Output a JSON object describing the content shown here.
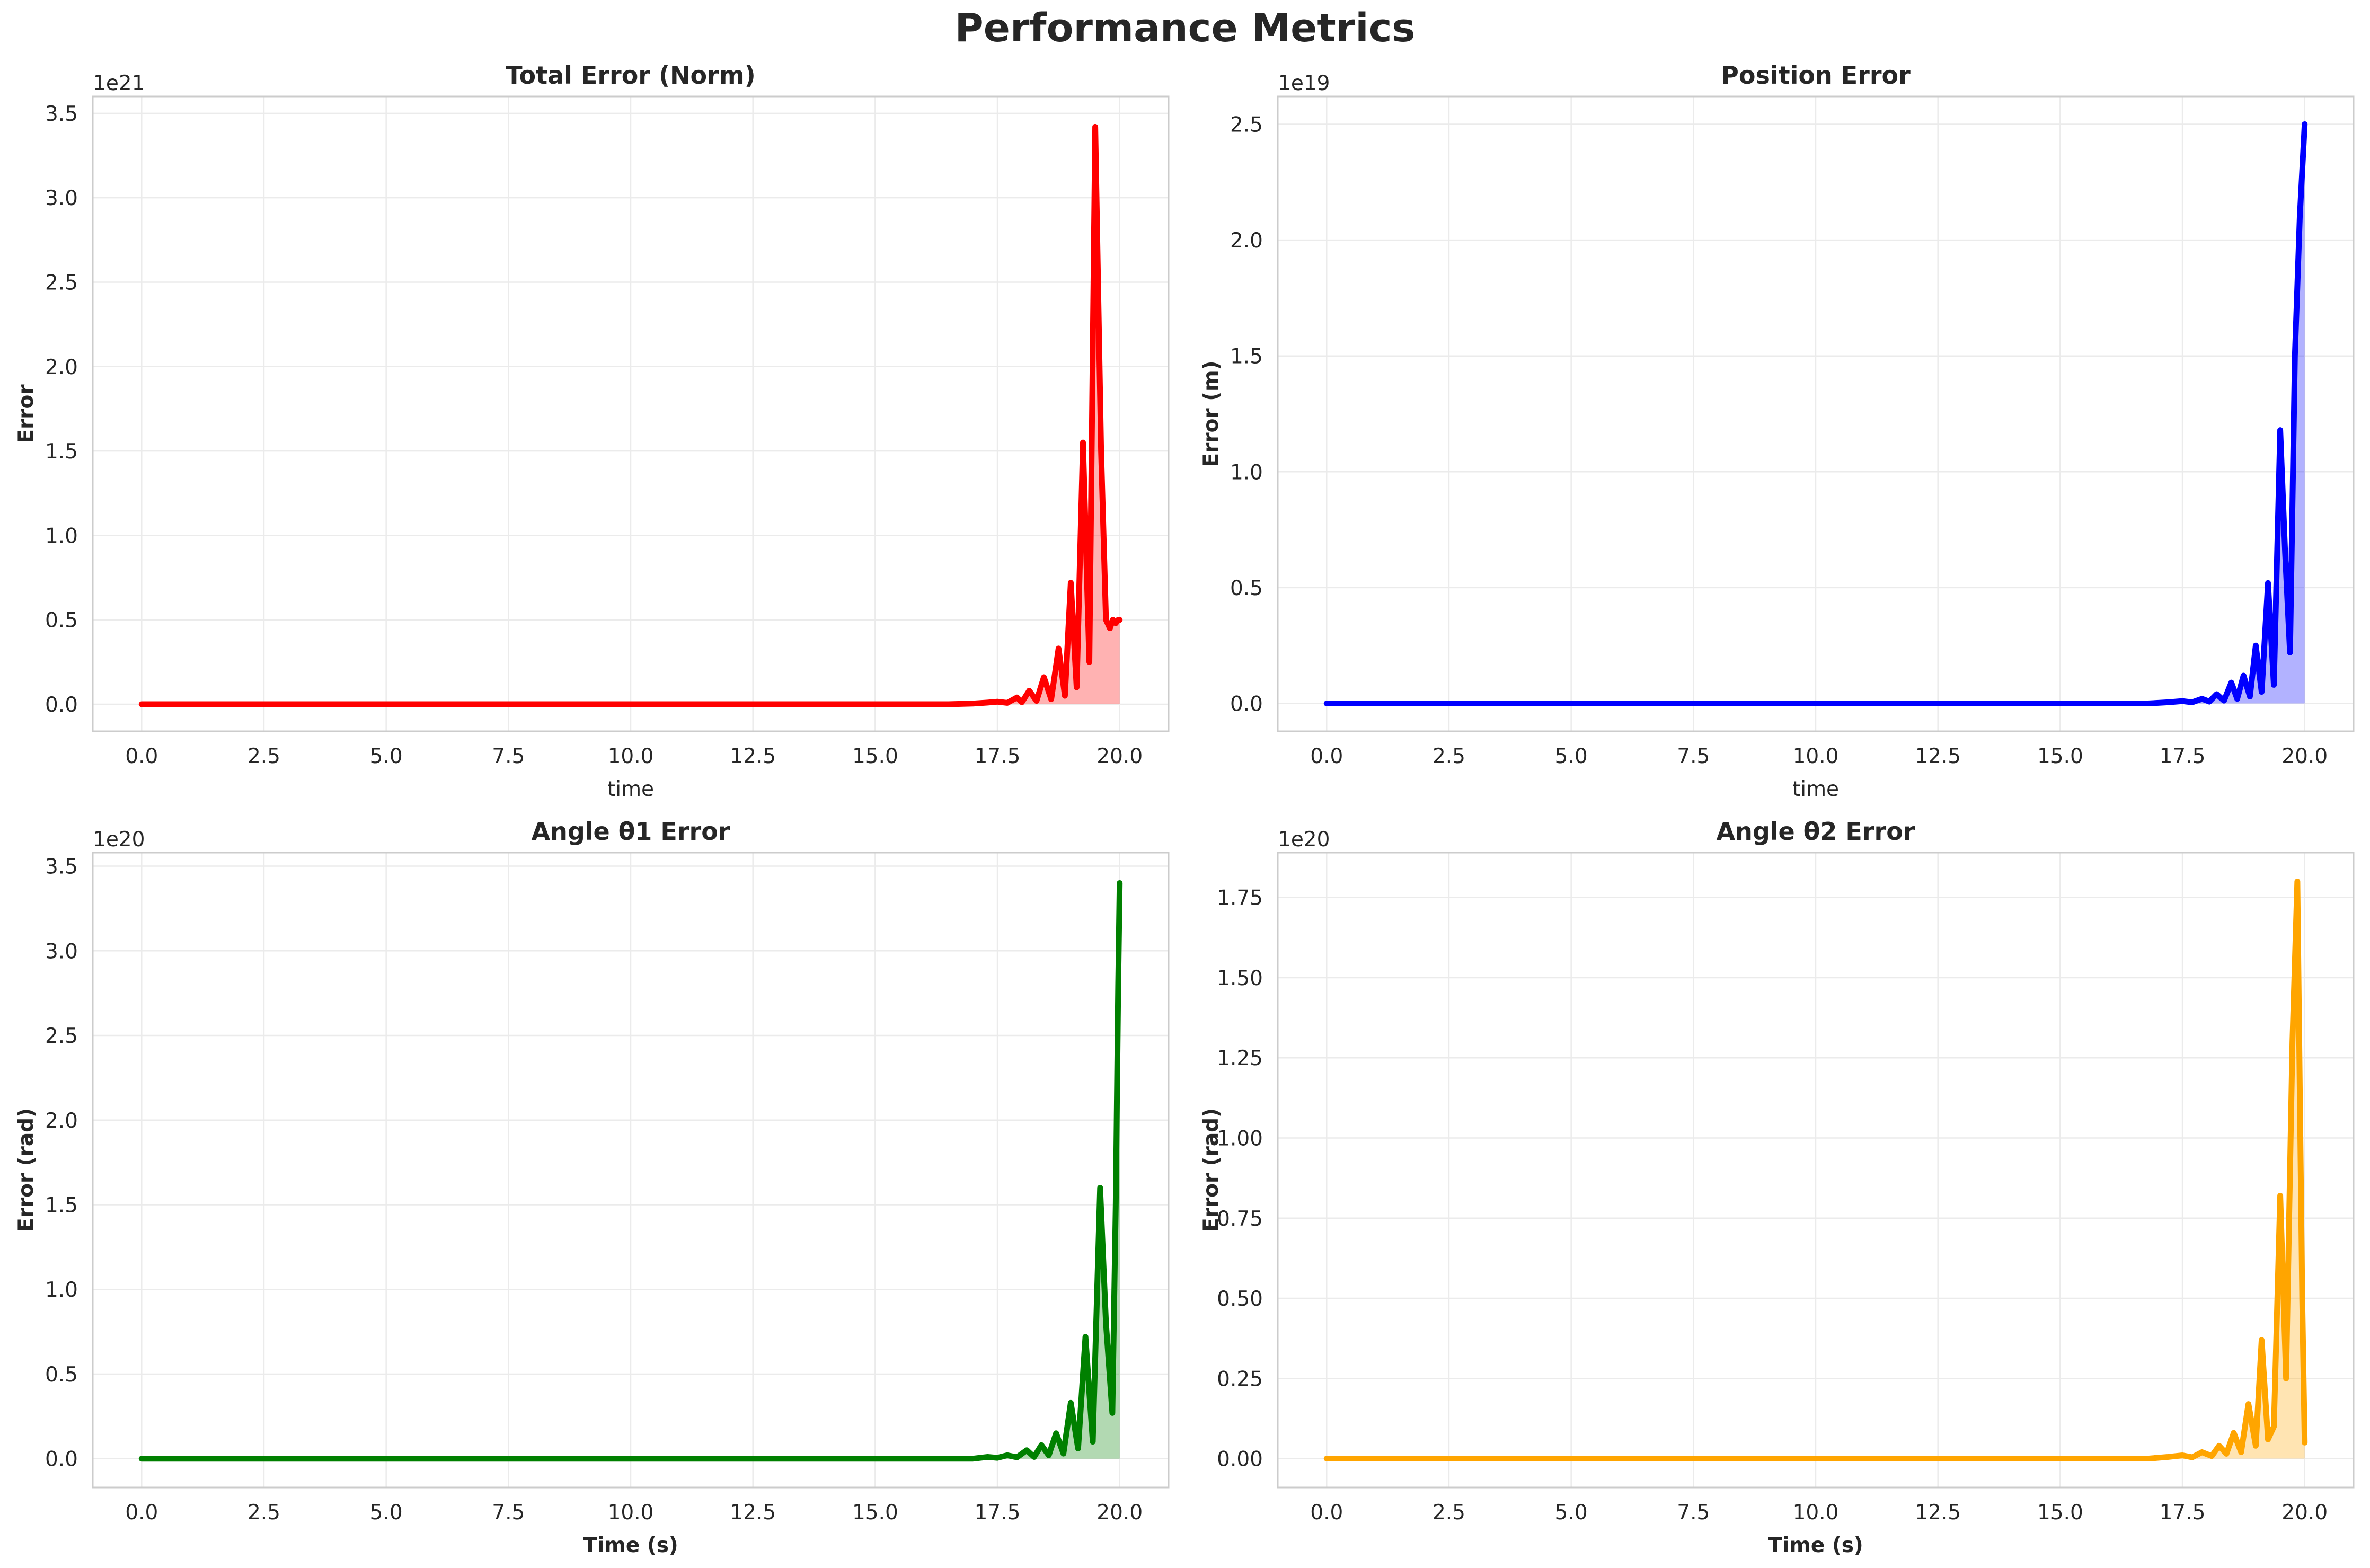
{
  "figure": {
    "title": "Performance Metrics"
  },
  "chart_data": [
    {
      "type": "area",
      "title": "Total Error (Norm)",
      "xlabel": "time",
      "xlabel_bold": false,
      "ylabel": "Error",
      "offset_label": "1e21",
      "xlim": [
        -1.0,
        21.0
      ],
      "ylim": [
        -0.16,
        3.6
      ],
      "xticks": [
        "0.0",
        "2.5",
        "5.0",
        "7.5",
        "10.0",
        "12.5",
        "15.0",
        "17.5",
        "20.0"
      ],
      "yticks": [
        "0.0",
        "0.5",
        "1.0",
        "1.5",
        "2.0",
        "2.5",
        "3.0",
        "3.5"
      ],
      "grid": true,
      "color": "#ff0000",
      "series": [
        {
          "x": [
            0,
            16.5,
            17.0,
            17.3,
            17.5,
            17.7,
            17.9,
            18.0,
            18.15,
            18.3,
            18.45,
            18.6,
            18.75,
            18.88,
            19.0,
            19.12,
            19.25,
            19.38,
            19.5,
            19.62,
            19.72,
            19.8,
            19.86,
            19.92,
            19.97,
            20.0
          ],
          "y": [
            0,
            0,
            0.004,
            0.01,
            0.015,
            0.008,
            0.04,
            0.012,
            0.08,
            0.02,
            0.16,
            0.03,
            0.33,
            0.05,
            0.72,
            0.1,
            1.55,
            0.25,
            3.42,
            1.5,
            0.5,
            0.45,
            0.5,
            0.48,
            0.5,
            0.5
          ]
        }
      ]
    },
    {
      "type": "area",
      "title": "Position Error",
      "xlabel": "time",
      "xlabel_bold": false,
      "ylabel": "Error (m)",
      "offset_label": "1e19",
      "xlim": [
        -1.0,
        21.0
      ],
      "ylim": [
        -0.12,
        2.62
      ],
      "xticks": [
        "0.0",
        "2.5",
        "5.0",
        "7.5",
        "10.0",
        "12.5",
        "15.0",
        "17.5",
        "20.0"
      ],
      "yticks": [
        "0.0",
        "0.5",
        "1.0",
        "1.5",
        "2.0",
        "2.5"
      ],
      "grid": true,
      "color": "#0000ff",
      "series": [
        {
          "x": [
            0,
            16.8,
            17.2,
            17.5,
            17.7,
            17.9,
            18.05,
            18.2,
            18.35,
            18.5,
            18.62,
            18.75,
            18.88,
            19.0,
            19.12,
            19.25,
            19.37,
            19.5,
            19.6,
            19.7,
            19.8,
            19.9,
            20.0
          ],
          "y": [
            0,
            0,
            0.005,
            0.01,
            0.005,
            0.02,
            0.008,
            0.04,
            0.012,
            0.09,
            0.02,
            0.12,
            0.03,
            0.25,
            0.05,
            0.52,
            0.08,
            1.18,
            0.65,
            0.22,
            1.5,
            2.1,
            2.5
          ]
        }
      ]
    },
    {
      "type": "area",
      "title": "Angle θ1 Error",
      "xlabel": "Time (s)",
      "xlabel_bold": true,
      "ylabel": "Error (rad)",
      "offset_label": "1e20",
      "xlim": [
        -1.0,
        21.0
      ],
      "ylim": [
        -0.17,
        3.58
      ],
      "xticks": [
        "0.0",
        "2.5",
        "5.0",
        "7.5",
        "10.0",
        "12.5",
        "15.0",
        "17.5",
        "20.0"
      ],
      "yticks": [
        "0.0",
        "0.5",
        "1.0",
        "1.5",
        "2.0",
        "2.5",
        "3.0",
        "3.5"
      ],
      "grid": true,
      "color": "#008000",
      "series": [
        {
          "x": [
            0,
            17.0,
            17.3,
            17.5,
            17.7,
            17.9,
            18.1,
            18.25,
            18.4,
            18.55,
            18.7,
            18.85,
            19.0,
            19.15,
            19.3,
            19.45,
            19.6,
            19.72,
            19.85,
            19.92,
            19.97,
            20.0
          ],
          "y": [
            0,
            0,
            0.01,
            0.005,
            0.02,
            0.008,
            0.05,
            0.01,
            0.08,
            0.02,
            0.15,
            0.03,
            0.33,
            0.06,
            0.72,
            0.1,
            1.6,
            0.8,
            0.27,
            1.5,
            2.8,
            3.4
          ]
        }
      ]
    },
    {
      "type": "area",
      "title": "Angle θ2 Error",
      "xlabel": "Time (s)",
      "xlabel_bold": true,
      "ylabel": "Error (rad)",
      "offset_label": "1e20",
      "xlim": [
        -1.0,
        21.0
      ],
      "ylim": [
        -0.09,
        1.89
      ],
      "xticks": [
        "0.0",
        "2.5",
        "5.0",
        "7.5",
        "10.0",
        "12.5",
        "15.0",
        "17.5",
        "20.0"
      ],
      "yticks": [
        "0.00",
        "0.25",
        "0.50",
        "0.75",
        "1.00",
        "1.25",
        "1.50",
        "1.75"
      ],
      "grid": true,
      "color": "#ffa500",
      "series": [
        {
          "x": [
            0,
            16.8,
            17.2,
            17.5,
            17.7,
            17.9,
            18.1,
            18.25,
            18.4,
            18.55,
            18.7,
            18.85,
            19.0,
            19.12,
            19.25,
            19.37,
            19.5,
            19.62,
            19.75,
            19.85,
            19.95,
            20.0
          ],
          "y": [
            0,
            0,
            0.005,
            0.01,
            0.004,
            0.02,
            0.008,
            0.04,
            0.015,
            0.08,
            0.02,
            0.17,
            0.04,
            0.37,
            0.06,
            0.1,
            0.82,
            0.25,
            1.3,
            1.8,
            0.5,
            0.05
          ]
        }
      ]
    }
  ]
}
